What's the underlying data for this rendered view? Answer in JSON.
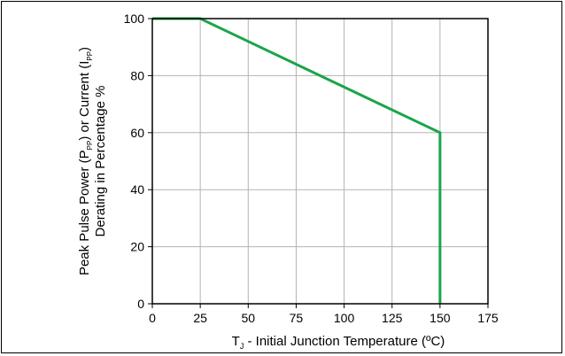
{
  "chart_data": {
    "type": "line",
    "title": "",
    "xlabel_prefix": "T",
    "xlabel_sub": "J",
    "xlabel_rest": " - Initial Junction Temperature (ºC)",
    "ylabel_line1_a": "Peak Pulse Power (P",
    "ylabel_line1_sub1": "PP",
    "ylabel_line1_b": ") or Current (I",
    "ylabel_line1_sub2": "PP",
    "ylabel_line1_c": ")",
    "ylabel_line2": "Derating in Percentage %",
    "xlim": [
      0,
      175
    ],
    "ylim": [
      0,
      100
    ],
    "xticks": [
      0,
      25,
      50,
      75,
      100,
      125,
      150,
      175
    ],
    "yticks": [
      0,
      20,
      40,
      60,
      80,
      100
    ],
    "grid": true,
    "series": [
      {
        "color": "#1aa54a",
        "points": [
          [
            0,
            100
          ],
          [
            25,
            100
          ],
          [
            150,
            60
          ],
          [
            150,
            0
          ]
        ]
      }
    ]
  }
}
